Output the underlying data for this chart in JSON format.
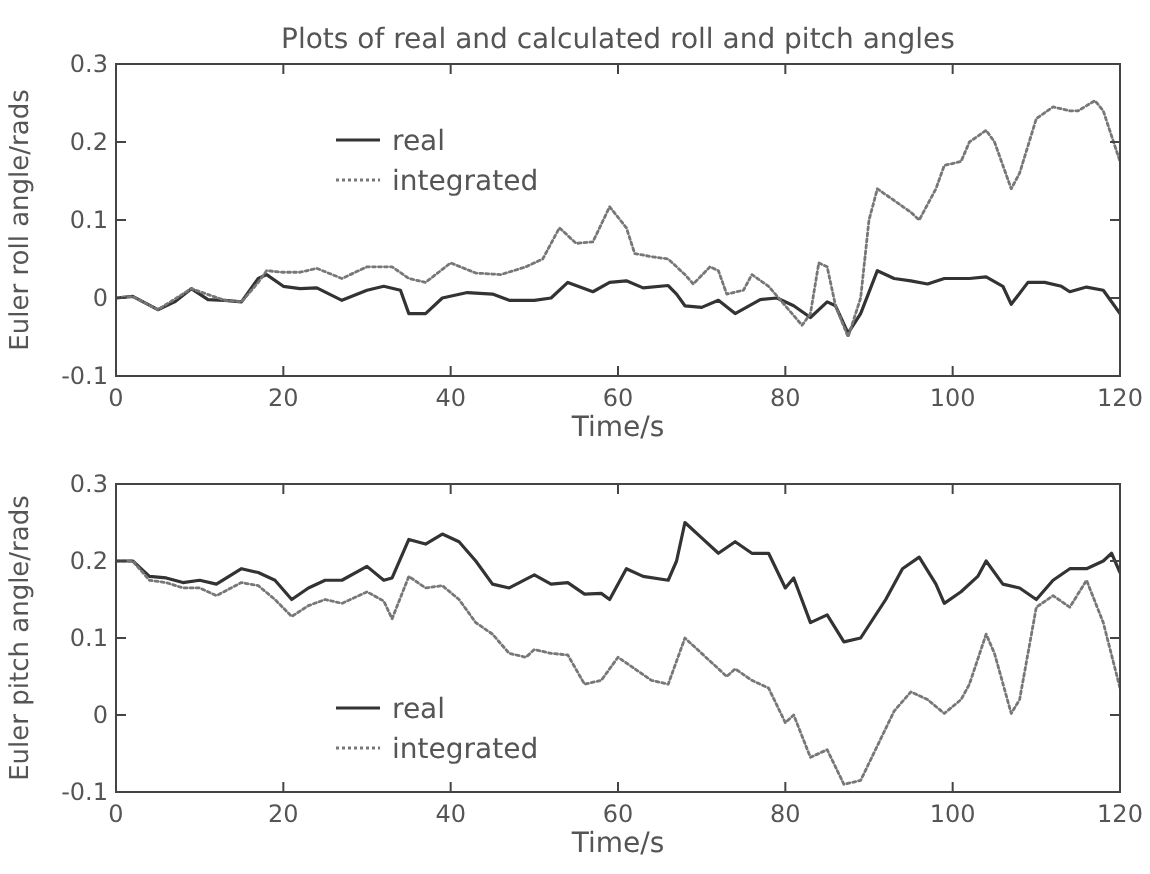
{
  "chart_data": [
    {
      "type": "line",
      "title": "Plots of real and calculated roll and pitch angles",
      "xlabel": "Time/s",
      "ylabel": "Euler roll angle/rads",
      "xlim": [
        0,
        120
      ],
      "xticks": [
        0,
        20,
        40,
        60,
        80,
        100,
        120
      ],
      "ylim": [
        -0.1,
        0.3
      ],
      "yticks": [
        -0.1,
        0,
        0.1,
        0.2,
        0.3
      ],
      "legend": "top left",
      "grid": false,
      "series": [
        {
          "name": "real",
          "color": "#333333",
          "line_style": "solid",
          "x": [
            0,
            2,
            5,
            7,
            9,
            11,
            13,
            15,
            17,
            18,
            20,
            22,
            24,
            27,
            30,
            32,
            34,
            35,
            37,
            39,
            42,
            45,
            47,
            50,
            52,
            54,
            57,
            59,
            61,
            63,
            66,
            67,
            68,
            70,
            72,
            74,
            77,
            79,
            81,
            83,
            85,
            86,
            87.5,
            89,
            91,
            93,
            95,
            97,
            99,
            102,
            104,
            106,
            107,
            109,
            111,
            113,
            114,
            116,
            118,
            120
          ],
          "values": [
            0,
            0.002,
            -0.015,
            -0.005,
            0.012,
            -0.002,
            -0.003,
            -0.005,
            0.025,
            0.03,
            0.015,
            0.012,
            0.013,
            -0.003,
            0.01,
            0.015,
            0.01,
            -0.02,
            -0.02,
            0,
            0.007,
            0.005,
            -0.003,
            -0.003,
            0,
            0.02,
            0.008,
            0.02,
            0.022,
            0.013,
            0.016,
            0.005,
            -0.01,
            -0.012,
            -0.003,
            -0.02,
            -0.002,
            0,
            -0.01,
            -0.025,
            -0.005,
            -0.01,
            -0.045,
            -0.02,
            0.035,
            0.025,
            0.022,
            0.018,
            0.025,
            0.025,
            0.027,
            0.015,
            -0.008,
            0.02,
            0.02,
            0.015,
            0.008,
            0.014,
            0.01,
            -0.02
          ]
        },
        {
          "name": "integrated",
          "color": "#777777",
          "line_style": "dotted",
          "x": [
            0,
            2,
            5,
            9,
            13,
            15,
            17,
            18,
            20,
            22,
            24,
            27,
            30,
            33,
            35,
            37,
            40,
            43,
            46,
            49,
            51,
            53,
            55,
            57,
            59,
            61,
            62,
            64,
            66,
            68,
            69,
            71,
            72,
            73,
            75,
            76,
            78,
            80,
            82,
            83,
            84,
            85,
            86,
            87.5,
            89,
            90,
            91,
            93,
            95,
            96,
            98,
            99,
            101,
            102,
            104,
            105,
            107,
            108,
            110,
            112,
            114,
            115,
            117,
            118,
            120
          ],
          "values": [
            0,
            0.002,
            -0.015,
            0.012,
            -0.003,
            -0.005,
            0.02,
            0.035,
            0.033,
            0.033,
            0.038,
            0.025,
            0.04,
            0.04,
            0.025,
            0.02,
            0.045,
            0.032,
            0.03,
            0.04,
            0.05,
            0.09,
            0.07,
            0.072,
            0.117,
            0.09,
            0.057,
            0.053,
            0.05,
            0.03,
            0.018,
            0.04,
            0.035,
            0.005,
            0.01,
            0.03,
            0.015,
            -0.01,
            -0.035,
            -0.02,
            0.045,
            0.04,
            -0.01,
            -0.05,
            0,
            0.1,
            0.14,
            0.125,
            0.11,
            0.1,
            0.14,
            0.17,
            0.175,
            0.2,
            0.215,
            0.2,
            0.14,
            0.16,
            0.23,
            0.245,
            0.24,
            0.24,
            0.253,
            0.24,
            0.175
          ]
        }
      ]
    },
    {
      "type": "line",
      "xlabel": "Time/s",
      "ylabel": "Euler pitch angle/rads",
      "xlim": [
        0,
        120
      ],
      "xticks": [
        0,
        20,
        40,
        60,
        80,
        100,
        120
      ],
      "ylim": [
        -0.1,
        0.3
      ],
      "yticks": [
        -0.1,
        0,
        0.1,
        0.2,
        0.3
      ],
      "legend": "bottom left",
      "grid": false,
      "series": [
        {
          "name": "real",
          "color": "#333333",
          "line_style": "solid",
          "x": [
            0,
            2,
            4,
            6,
            8,
            10,
            12,
            15,
            17,
            19,
            21,
            23,
            25,
            27,
            30,
            32,
            33,
            35,
            37,
            39,
            41,
            43,
            45,
            47,
            50,
            52,
            54,
            56,
            58,
            59,
            61,
            63,
            66,
            67,
            68,
            70,
            72,
            74,
            76,
            78,
            80,
            81,
            83,
            85,
            87,
            89,
            92,
            94,
            96,
            98,
            99,
            101,
            103,
            104,
            106,
            108,
            110,
            112,
            114,
            116,
            118,
            119,
            120
          ],
          "values": [
            0.2,
            0.2,
            0.18,
            0.178,
            0.172,
            0.175,
            0.17,
            0.19,
            0.185,
            0.175,
            0.15,
            0.165,
            0.175,
            0.175,
            0.193,
            0.175,
            0.178,
            0.228,
            0.222,
            0.235,
            0.225,
            0.2,
            0.17,
            0.165,
            0.182,
            0.17,
            0.172,
            0.157,
            0.158,
            0.15,
            0.19,
            0.18,
            0.175,
            0.2,
            0.25,
            0.23,
            0.21,
            0.225,
            0.21,
            0.21,
            0.165,
            0.178,
            0.12,
            0.13,
            0.095,
            0.1,
            0.15,
            0.19,
            0.205,
            0.17,
            0.145,
            0.16,
            0.18,
            0.2,
            0.17,
            0.165,
            0.15,
            0.175,
            0.19,
            0.19,
            0.2,
            0.21,
            0.185
          ]
        },
        {
          "name": "integrated",
          "color": "#777777",
          "line_style": "dotted",
          "x": [
            0,
            2,
            4,
            6,
            8,
            10,
            12,
            15,
            17,
            19,
            21,
            23,
            25,
            27,
            30,
            32,
            33,
            35,
            37,
            39,
            41,
            43,
            45,
            47,
            49,
            50,
            52,
            54,
            56,
            58,
            60,
            62,
            64,
            66,
            68,
            70,
            72,
            73,
            74,
            76,
            78,
            80,
            81,
            83,
            85,
            87,
            89,
            91,
            93,
            95,
            97,
            99,
            101,
            102,
            104,
            105,
            107,
            108,
            110,
            112,
            114,
            116,
            118,
            120
          ],
          "values": [
            0.2,
            0.2,
            0.175,
            0.172,
            0.165,
            0.165,
            0.155,
            0.172,
            0.168,
            0.15,
            0.128,
            0.142,
            0.15,
            0.145,
            0.16,
            0.148,
            0.125,
            0.18,
            0.165,
            0.168,
            0.15,
            0.12,
            0.105,
            0.08,
            0.075,
            0.085,
            0.08,
            0.078,
            0.04,
            0.045,
            0.075,
            0.06,
            0.045,
            0.04,
            0.1,
            0.08,
            0.06,
            0.05,
            0.06,
            0.045,
            0.035,
            -0.01,
            0,
            -0.055,
            -0.045,
            -0.09,
            -0.085,
            -0.04,
            0.005,
            0.03,
            0.02,
            0.002,
            0.02,
            0.04,
            0.105,
            0.08,
            0.002,
            0.02,
            0.14,
            0.155,
            0.14,
            0.175,
            0.12,
            0.035
          ]
        }
      ]
    }
  ]
}
